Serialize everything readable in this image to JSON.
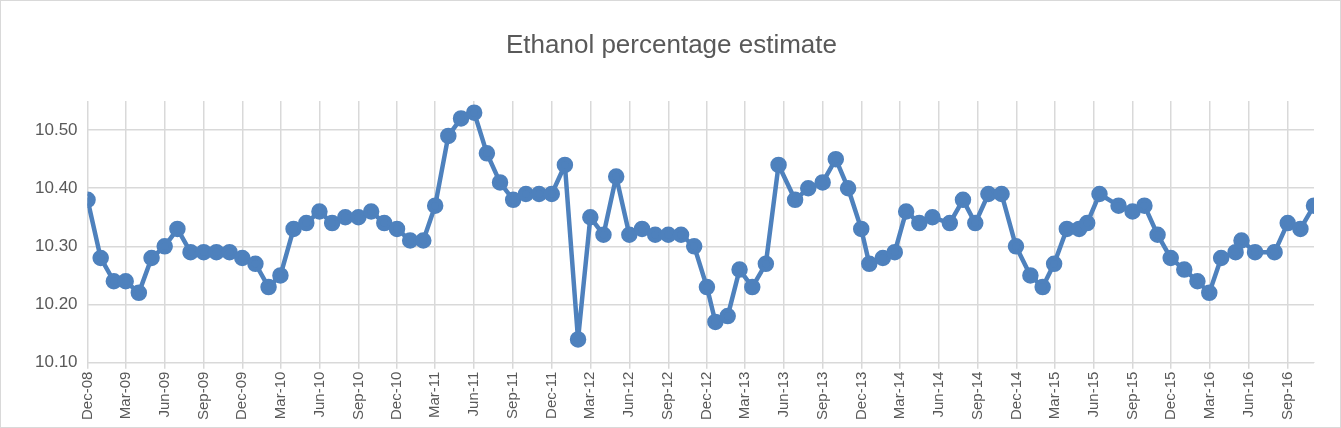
{
  "chart_data": {
    "type": "line",
    "title": "Ethanol percentage estimate",
    "x": [
      "2008-12",
      "2009-01",
      "2009-02",
      "2009-03",
      "2009-04",
      "2009-05",
      "2009-06",
      "2009-07",
      "2009-08",
      "2009-09",
      "2009-10",
      "2009-11",
      "2009-12",
      "2010-01",
      "2010-02",
      "2010-03",
      "2010-04",
      "2010-05",
      "2010-06",
      "2010-07",
      "2010-08",
      "2010-09",
      "2010-10",
      "2010-11",
      "2010-12",
      "2011-01",
      "2011-02",
      "2011-03",
      "2011-04",
      "2011-05",
      "2011-06",
      "2011-07",
      "2011-08",
      "2011-09",
      "2011-10",
      "2011-11",
      "2011-12",
      "2012-01",
      "2012-02",
      "2012-03",
      "2012-04",
      "2012-05",
      "2012-06",
      "2012-07",
      "2012-08",
      "2012-09",
      "2012-10",
      "2012-11",
      "2012-12",
      "2012-12-21",
      "2013-01-19",
      "2013-02-16",
      "2013-03-18",
      "2013-04-19",
      "2013-05-19",
      "2013-06-27",
      "2013-07-28",
      "2013-08-31",
      "2013-10-01",
      "2013-10-30",
      "2013-11-30",
      "2013-12-19",
      "2014-01-20",
      "2014-02-17",
      "2014-03-16",
      "2014-04-16",
      "2014-05-17",
      "2014-06-27",
      "2014-07-28",
      "2014-08-26",
      "2014-09-26",
      "2014-10-27",
      "2014-11-30",
      "2015-01-03",
      "2015-02-01",
      "2015-02-28",
      "2015-03-30",
      "2015-04-28",
      "2015-05-17",
      "2015-06-15",
      "2015-07-30",
      "2015-09-01",
      "2015-09-29",
      "2015-10-30",
      "2015-11-30",
      "2016-01-01",
      "2016-02-01",
      "2016-02-29",
      "2016-03-28",
      "2016-05-01",
      "2016-05-15",
      "2016-06-16",
      "2016-08-01",
      "2016-09-01",
      "2016-10-01",
      "2016-11-02"
    ],
    "series": [
      {
        "color": "#4e81bd",
        "values": [
          10.38,
          10.28,
          10.24,
          10.24,
          10.22,
          10.28,
          10.3,
          10.33,
          10.29,
          10.29,
          10.29,
          10.29,
          10.28,
          10.27,
          10.23,
          10.25,
          10.33,
          10.34,
          10.36,
          10.34,
          10.35,
          10.35,
          10.36,
          10.34,
          10.33,
          10.31,
          10.31,
          10.37,
          10.49,
          10.52,
          10.53,
          10.46,
          10.41,
          10.38,
          10.39,
          10.39,
          10.39,
          10.44,
          10.14,
          10.35,
          10.32,
          10.42,
          10.32,
          10.33,
          10.32,
          10.32,
          10.32,
          10.3,
          10.23,
          10.17,
          10.18,
          10.26,
          10.23,
          10.27,
          10.44,
          10.38,
          10.4,
          10.41,
          10.45,
          10.4,
          10.33,
          10.27,
          10.28,
          10.29,
          10.36,
          10.34,
          10.35,
          10.34,
          10.38,
          10.34,
          10.39,
          10.39,
          10.3,
          10.25,
          10.23,
          10.27,
          10.33,
          10.33,
          10.34,
          10.39,
          10.37,
          10.36,
          10.37,
          10.32,
          10.28,
          10.26,
          10.24,
          10.22,
          10.28,
          10.29,
          10.31,
          10.29,
          10.29,
          10.34,
          10.33,
          10.37
        ]
      }
    ],
    "xlim": [
      "2008-12",
      "2016-11-02"
    ],
    "xticks": [
      {
        "value": "2008-12",
        "label": "Dec-08"
      },
      {
        "value": "2009-03",
        "label": "Mar-09"
      },
      {
        "value": "2009-06",
        "label": "Jun-09"
      },
      {
        "value": "2009-09",
        "label": "Sep-09"
      },
      {
        "value": "2009-12",
        "label": "Dec-09"
      },
      {
        "value": "2010-03",
        "label": "Mar-10"
      },
      {
        "value": "2010-06",
        "label": "Jun-10"
      },
      {
        "value": "2010-09",
        "label": "Sep-10"
      },
      {
        "value": "2010-12",
        "label": "Dec-10"
      },
      {
        "value": "2011-03",
        "label": "Mar-11"
      },
      {
        "value": "2011-06",
        "label": "Jun-11"
      },
      {
        "value": "2011-09",
        "label": "Sep-11"
      },
      {
        "value": "2011-12",
        "label": "Dec-11"
      },
      {
        "value": "2012-03",
        "label": "Mar-12"
      },
      {
        "value": "2012-06",
        "label": "Jun-12"
      },
      {
        "value": "2012-09",
        "label": "Sep-12"
      },
      {
        "value": "2012-12",
        "label": "Dec-12"
      },
      {
        "value": "2013-03",
        "label": "Mar-13"
      },
      {
        "value": "2013-06",
        "label": "Jun-13"
      },
      {
        "value": "2013-09",
        "label": "Sep-13"
      },
      {
        "value": "2013-12",
        "label": "Dec-13"
      },
      {
        "value": "2014-03",
        "label": "Mar-14"
      },
      {
        "value": "2014-06",
        "label": "Jun-14"
      },
      {
        "value": "2014-09",
        "label": "Sep-14"
      },
      {
        "value": "2014-12",
        "label": "Dec-14"
      },
      {
        "value": "2015-03",
        "label": "Mar-15"
      },
      {
        "value": "2015-06",
        "label": "Jun-15"
      },
      {
        "value": "2015-09",
        "label": "Sep-15"
      },
      {
        "value": "2015-12",
        "label": "Dec-15"
      },
      {
        "value": "2016-03",
        "label": "Mar-16"
      },
      {
        "value": "2016-06",
        "label": "Jun-16"
      },
      {
        "value": "2016-09",
        "label": "Sep-16"
      }
    ],
    "ylim": [
      10.1,
      10.55
    ],
    "yticks": [
      {
        "value": 10.1,
        "label": "10.10"
      },
      {
        "value": 10.2,
        "label": "10.20"
      },
      {
        "value": 10.3,
        "label": "10.30"
      },
      {
        "value": 10.4,
        "label": "10.40"
      },
      {
        "value": 10.5,
        "label": "10.50"
      }
    ],
    "grid": true,
    "marker": "circle",
    "line_style": "solid"
  }
}
